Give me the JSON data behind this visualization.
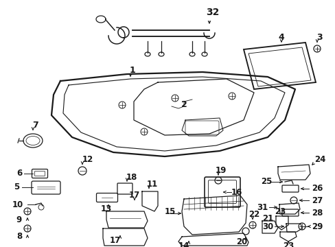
{
  "bg_color": "#ffffff",
  "line_color": "#1a1a1a",
  "figwidth": 4.89,
  "figheight": 3.6,
  "dpi": 100,
  "parts": {
    "wiring_harness_label": "32",
    "glass_label": "4",
    "screw_top_label": "3"
  }
}
